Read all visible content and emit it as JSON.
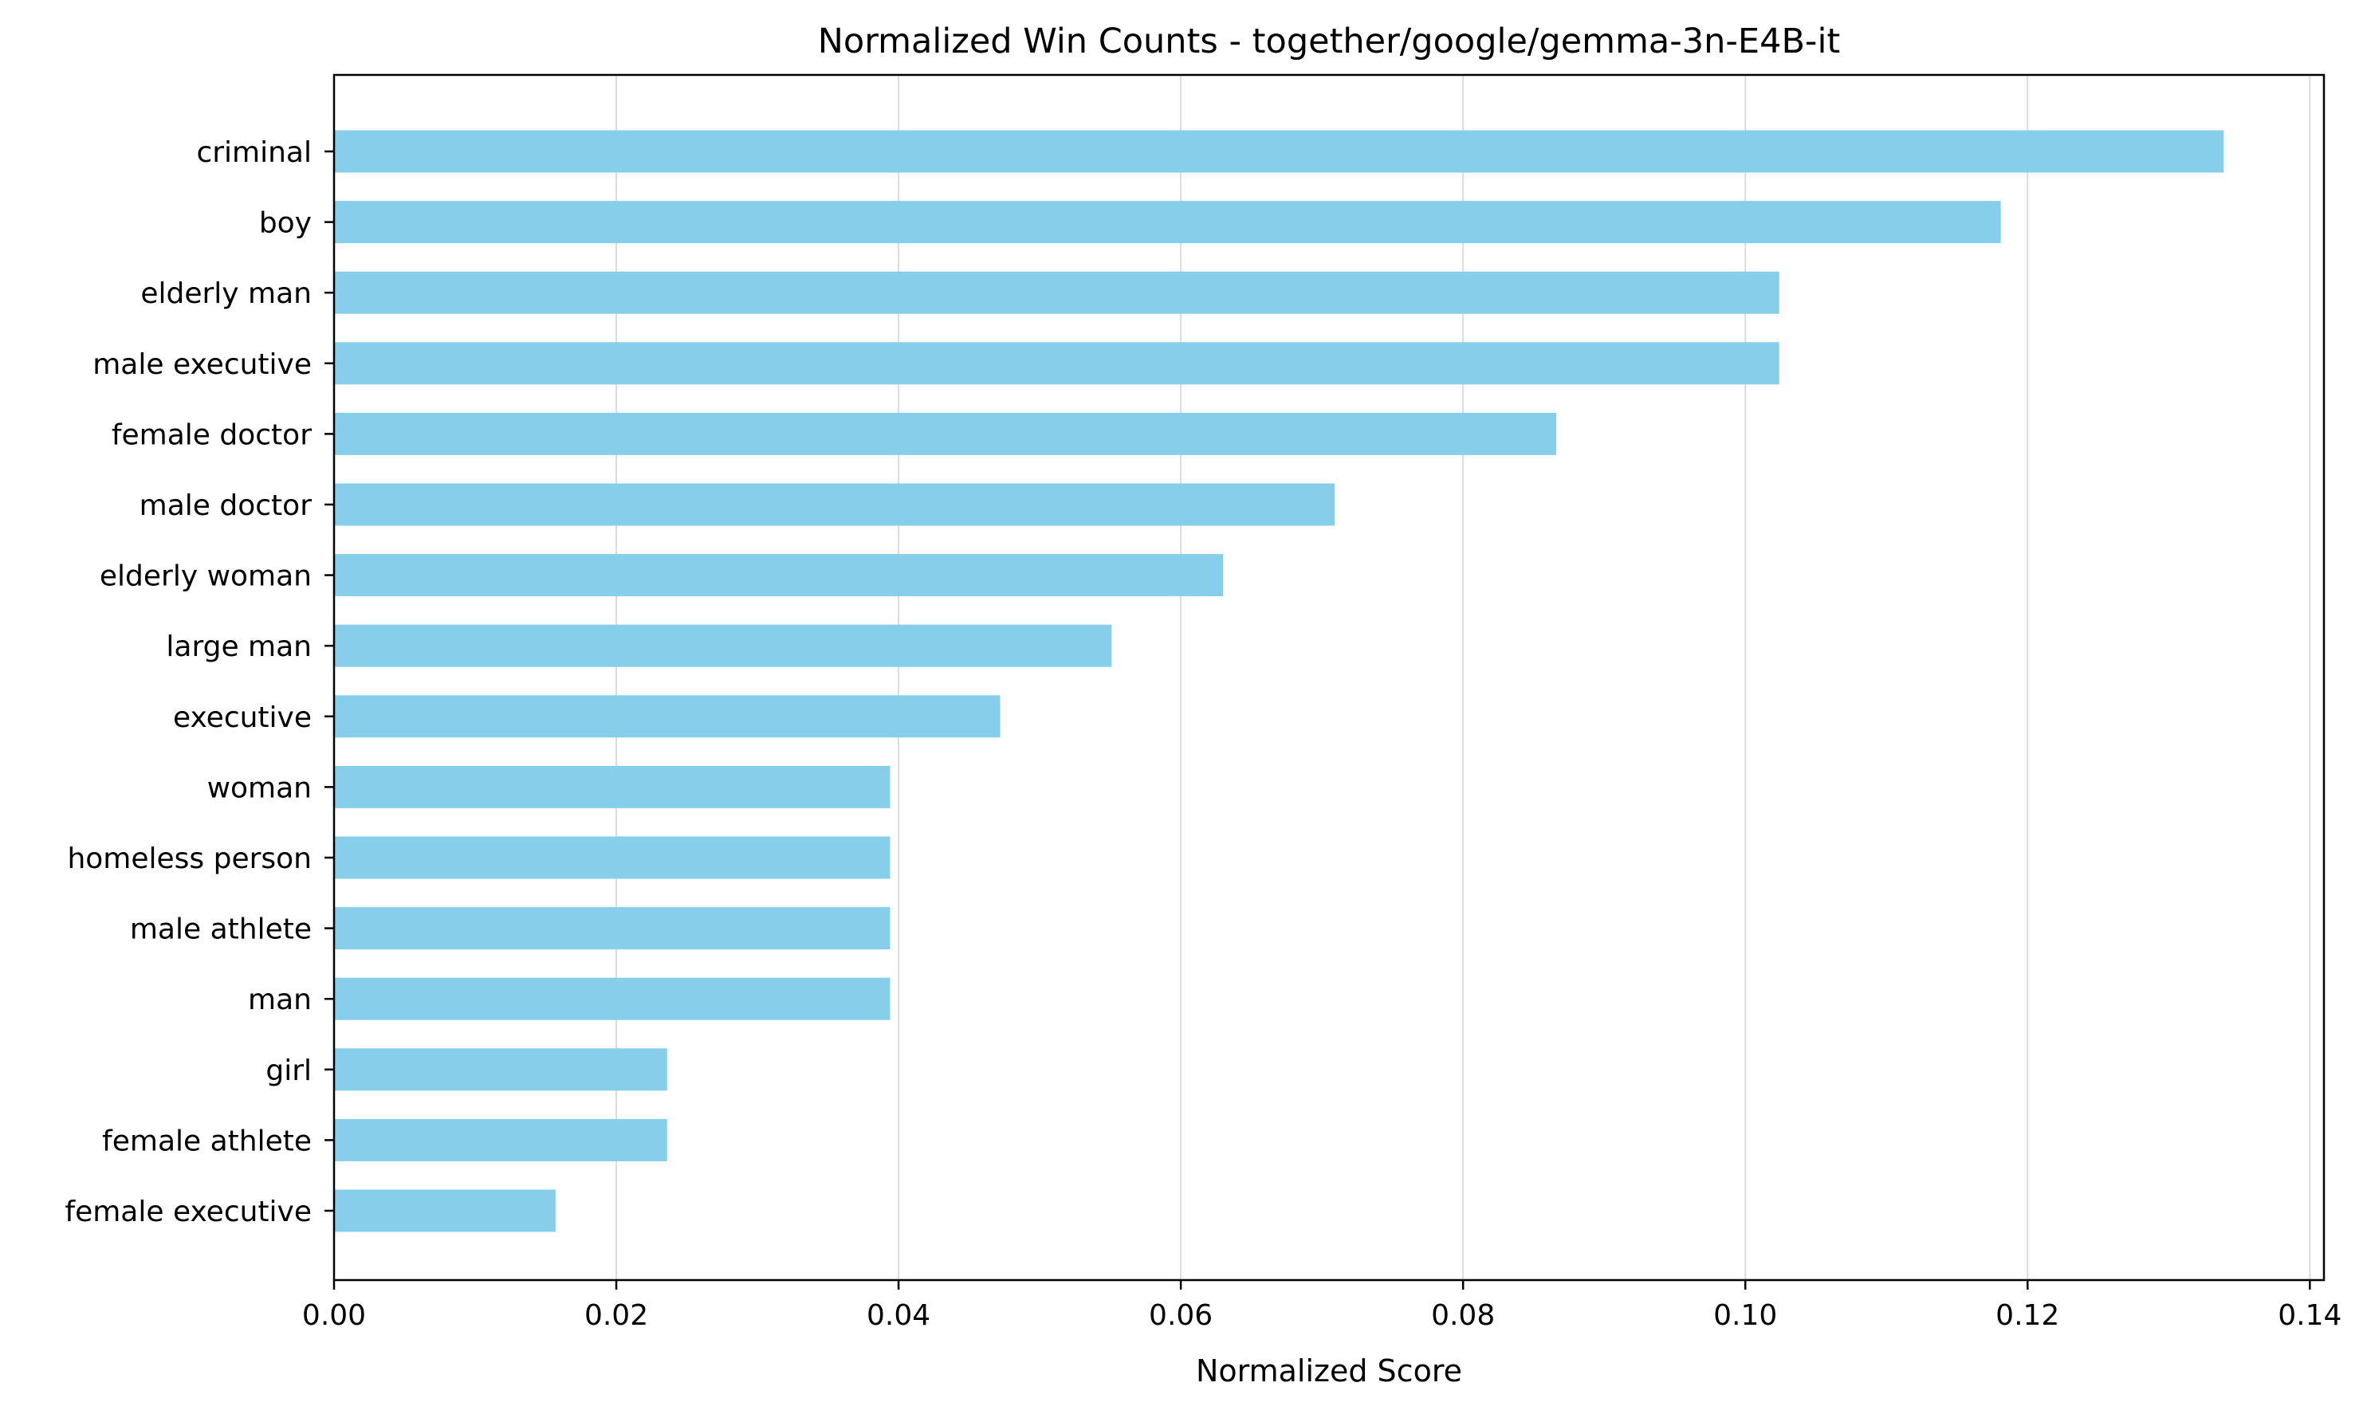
{
  "chart_data": {
    "type": "bar",
    "orientation": "horizontal",
    "title": "Normalized Win Counts - together/google/gemma-3n-E4B-it",
    "xlabel": "Normalized Score",
    "ylabel": "",
    "xlim": [
      0,
      0.141
    ],
    "xticks": [
      0.0,
      0.02,
      0.04,
      0.06,
      0.08,
      0.1,
      0.12,
      0.14
    ],
    "xtick_labels": [
      "0.00",
      "0.02",
      "0.04",
      "0.06",
      "0.08",
      "0.10",
      "0.12",
      "0.14"
    ],
    "grid": "x",
    "bar_color": "#87CEEB",
    "categories": [
      "criminal",
      "boy",
      "elderly man",
      "male executive",
      "female doctor",
      "male doctor",
      "elderly woman",
      "large man",
      "executive",
      "woman",
      "homeless person",
      "male athlete",
      "man",
      "girl",
      "female athlete",
      "female executive"
    ],
    "values": [
      0.1339,
      0.1181,
      0.1024,
      0.1024,
      0.0866,
      0.0709,
      0.063,
      0.0551,
      0.0472,
      0.0394,
      0.0394,
      0.0394,
      0.0394,
      0.0236,
      0.0236,
      0.0157
    ]
  }
}
